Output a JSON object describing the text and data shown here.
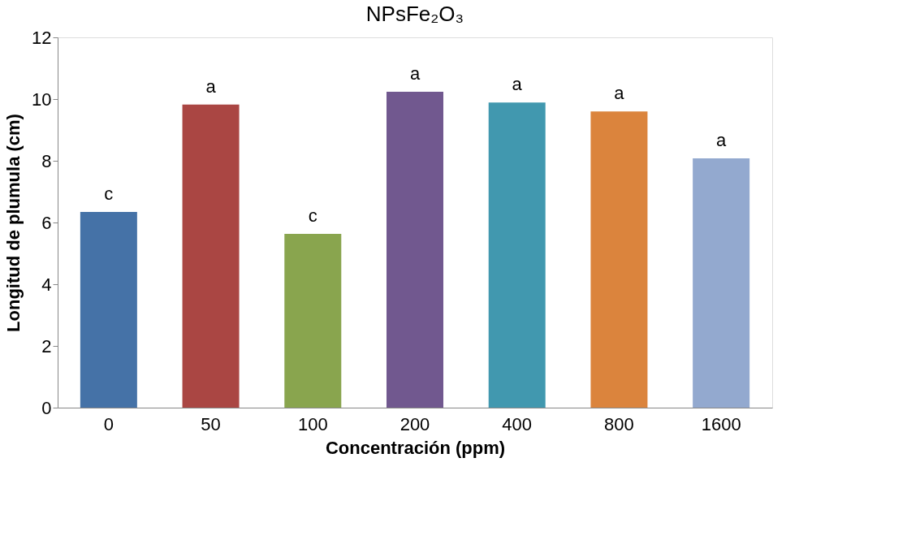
{
  "chart_data": {
    "type": "bar",
    "title": "NPsFe₂O₃",
    "xlabel": "Concentración (ppm)",
    "ylabel": "Longitud de plumula (cm)",
    "categories": [
      "0",
      "50",
      "100",
      "200",
      "400",
      "800",
      "1600"
    ],
    "values": [
      6.34,
      9.82,
      5.63,
      10.24,
      9.89,
      9.6,
      8.08
    ],
    "colors": [
      "#4572a7",
      "#aa4643",
      "#89a54e",
      "#71588f",
      "#4198af",
      "#db843d",
      "#93a9cf"
    ],
    "ylim": [
      0,
      12
    ],
    "yticks": [
      0,
      2,
      4,
      6,
      8,
      10,
      12
    ],
    "grid": false,
    "legend": false,
    "annotations": [
      {
        "text": "c",
        "x": "0",
        "y": 6.34
      },
      {
        "text": "a",
        "x": "50",
        "y": 9.82
      },
      {
        "text": "c",
        "x": "100",
        "y": 5.63
      },
      {
        "text": "a",
        "x": "200",
        "y": 10.24
      },
      {
        "text": "a",
        "x": "400",
        "y": 9.89
      },
      {
        "text": "a",
        "x": "800",
        "y": 9.6
      },
      {
        "text": "a",
        "x": "1600",
        "y": 8.08
      }
    ]
  }
}
